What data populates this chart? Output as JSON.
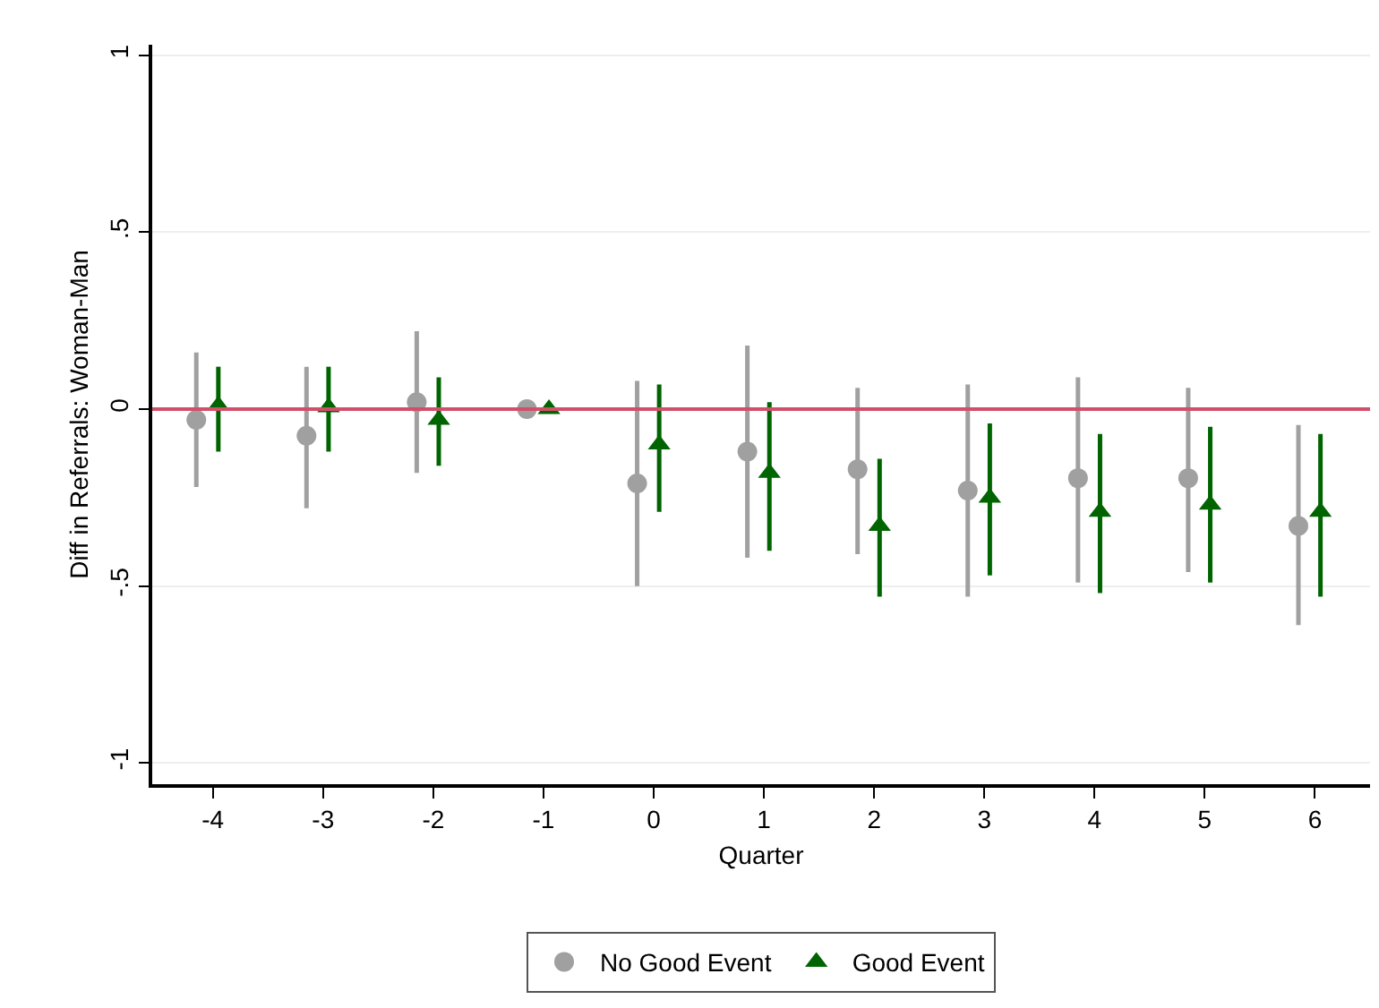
{
  "chart_data": {
    "type": "scatter",
    "xlabel": "Quarter",
    "ylabel": "Diff in Referrals: Woman-Man",
    "xlim": [
      -4.55,
      6.5
    ],
    "xticks": [
      -4,
      -3,
      -2,
      -1,
      0,
      1,
      2,
      3,
      4,
      5,
      6
    ],
    "ylim": [
      -1.06,
      1.03
    ],
    "yticks": [
      {
        "value": -1,
        "label": "-1"
      },
      {
        "value": -0.5,
        "label": "-.5"
      },
      0,
      {
        "value": 0.5,
        "label": ".5"
      },
      1
    ],
    "grid": "y",
    "legend": "bottom",
    "ref_lines": [
      {
        "axis": "y",
        "value": 0,
        "color": "#d0506a"
      }
    ],
    "series": [
      {
        "name": "No Good Event",
        "color": "#a0a0a0",
        "marker": "circle",
        "x": [
          -4.15,
          -3.15,
          -2.15,
          -1.15,
          -0.15,
          0.85,
          1.85,
          2.85,
          3.85,
          4.85,
          5.85
        ],
        "values": [
          -0.03,
          -0.075,
          0.02,
          0,
          -0.21,
          -0.12,
          -0.17,
          -0.23,
          -0.195,
          -0.195,
          -0.33
        ],
        "errors": [
          [
            -0.22,
            0.16
          ],
          [
            -0.28,
            0.12
          ],
          [
            -0.18,
            0.22
          ],
          null,
          [
            -0.5,
            0.08
          ],
          [
            -0.42,
            0.18
          ],
          [
            -0.41,
            0.06
          ],
          [
            -0.53,
            0.07
          ],
          [
            -0.49,
            0.09
          ],
          [
            -0.46,
            0.06
          ],
          [
            -0.61,
            -0.045
          ]
        ]
      },
      {
        "name": "Good Event",
        "color": "#006400",
        "marker": "triangle",
        "x": [
          -3.95,
          -2.95,
          -1.95,
          -0.95,
          0.05,
          1.05,
          2.05,
          3.05,
          4.05,
          5.05,
          6.05
        ],
        "values": [
          0.01,
          0.005,
          -0.03,
          0,
          -0.1,
          -0.18,
          -0.33,
          -0.25,
          -0.29,
          -0.27,
          -0.29
        ],
        "errors": [
          [
            -0.12,
            0.12
          ],
          [
            -0.12,
            0.12
          ],
          [
            -0.16,
            0.09
          ],
          null,
          [
            -0.29,
            0.07
          ],
          [
            -0.4,
            0.02
          ],
          [
            -0.53,
            -0.14
          ],
          [
            -0.47,
            -0.04
          ],
          [
            -0.52,
            -0.07
          ],
          [
            -0.49,
            -0.05
          ],
          [
            -0.53,
            -0.07
          ]
        ]
      }
    ]
  }
}
